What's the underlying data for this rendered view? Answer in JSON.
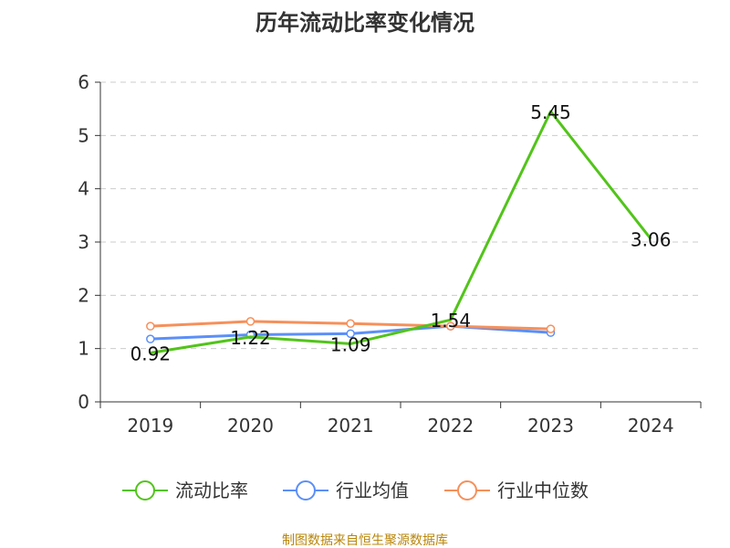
{
  "chart_data": {
    "type": "line",
    "title": "历年流动比率变化情况",
    "categories": [
      "2019",
      "2020",
      "2021",
      "2022",
      "2023",
      "2024"
    ],
    "ylim": [
      0,
      6
    ],
    "yticks": [
      0,
      1,
      2,
      3,
      4,
      5,
      6
    ],
    "grid": true,
    "legend_position": "bottom",
    "series": [
      {
        "name": "流动比率",
        "color": "#52c41a",
        "values": [
          0.92,
          1.22,
          1.09,
          1.54,
          5.45,
          3.06
        ],
        "show_labels": true
      },
      {
        "name": "行业均值",
        "color": "#5b8ff9",
        "values": [
          1.18,
          1.26,
          1.28,
          1.42,
          null,
          null
        ],
        "values_2023": 1.3,
        "show_labels": false
      },
      {
        "name": "行业中位数",
        "color": "#f6905a",
        "values": [
          1.42,
          1.51,
          1.47,
          1.42,
          1.37,
          null
        ],
        "show_labels": false
      }
    ],
    "data_labels": [
      "0.92",
      "1.22",
      "1.09",
      "1.54",
      "5.45",
      "3.06"
    ],
    "source": "制图数据来自恒生聚源数据库"
  }
}
